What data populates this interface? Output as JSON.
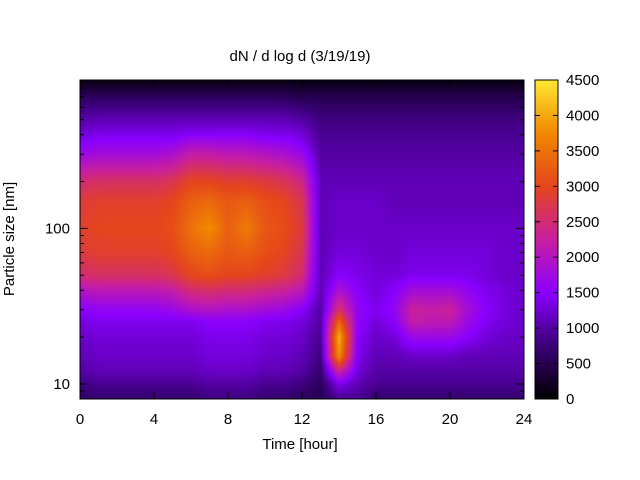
{
  "chart_data": {
    "type": "heatmap",
    "title": "dN / d log d (3/19/19)",
    "xlabel": "Time [hour]",
    "ylabel": "Particle size [nm]",
    "xlim": [
      0,
      24
    ],
    "ylim": [
      8,
      900
    ],
    "yscale": "log",
    "grid": false,
    "x_ticks": [
      0,
      4,
      8,
      12,
      16,
      20,
      24
    ],
    "x_tick_labels": [
      "0",
      "4",
      "8",
      "12",
      "16",
      "20",
      "24"
    ],
    "y_ticks": [
      10,
      100
    ],
    "y_tick_labels": [
      "10",
      "100"
    ],
    "colorbar": {
      "range": [
        0,
        4500
      ],
      "ticks": [
        0,
        500,
        1000,
        1500,
        2000,
        2500,
        3000,
        3500,
        4000,
        4500
      ],
      "tick_labels": [
        "0",
        "500",
        "1000",
        "1500",
        "2000",
        "2500",
        "3000",
        "3500",
        "4000",
        "4500"
      ],
      "colormap": [
        "#000000",
        "#3a0077",
        "#8a00ff",
        "#c81fa0",
        "#e5451c",
        "#f08800",
        "#ffe733"
      ]
    },
    "hours": [
      0,
      1,
      2,
      3,
      4,
      5,
      6,
      7,
      8,
      9,
      10,
      11,
      12,
      13,
      14,
      15,
      16,
      17,
      18,
      19,
      20,
      21,
      22,
      23,
      24
    ],
    "sizes_nm": [
      8,
      10,
      12,
      15,
      20,
      25,
      30,
      40,
      50,
      70,
      100,
      150,
      200,
      300,
      400,
      500,
      700,
      900
    ],
    "values": [
      [
        600,
        700,
        700,
        700,
        700,
        700,
        700,
        800,
        800,
        800,
        700,
        700,
        600,
        500,
        900,
        900,
        700,
        700,
        700,
        700,
        700,
        700,
        700,
        700,
        700
      ],
      [
        800,
        900,
        900,
        900,
        900,
        900,
        900,
        1000,
        1000,
        1000,
        900,
        900,
        800,
        600,
        1400,
        1100,
        900,
        900,
        900,
        900,
        900,
        900,
        900,
        900,
        900
      ],
      [
        1000,
        1100,
        1100,
        1100,
        1100,
        1100,
        1100,
        1200,
        1200,
        1200,
        1100,
        1100,
        1000,
        700,
        2300,
        1300,
        1000,
        1000,
        1000,
        1000,
        1000,
        1000,
        1000,
        1000,
        1000
      ],
      [
        1100,
        1200,
        1200,
        1200,
        1200,
        1200,
        1200,
        1300,
        1300,
        1300,
        1200,
        1200,
        1100,
        800,
        3800,
        1400,
        1100,
        1100,
        1200,
        1200,
        1200,
        1100,
        1100,
        1100,
        1100
      ],
      [
        1200,
        1300,
        1300,
        1300,
        1300,
        1300,
        1300,
        1400,
        1400,
        1400,
        1300,
        1300,
        1200,
        900,
        4100,
        1500,
        1200,
        1300,
        1700,
        1700,
        1700,
        1500,
        1300,
        1200,
        1200
      ],
      [
        1300,
        1400,
        1400,
        1400,
        1400,
        1400,
        1400,
        1500,
        1500,
        1500,
        1400,
        1400,
        1300,
        1000,
        3400,
        1600,
        1300,
        1500,
        2200,
        2100,
        2100,
        1700,
        1400,
        1300,
        1200
      ],
      [
        1500,
        1600,
        1600,
        1600,
        1600,
        1700,
        1900,
        2000,
        1900,
        1900,
        1800,
        1700,
        1500,
        1000,
        2600,
        1600,
        1400,
        1600,
        2300,
        2200,
        2300,
        1800,
        1500,
        1300,
        1200
      ],
      [
        2000,
        2100,
        2100,
        2100,
        2100,
        2200,
        2500,
        2600,
        2500,
        2500,
        2400,
        2300,
        2100,
        1100,
        1900,
        1500,
        1300,
        1500,
        1800,
        1800,
        1800,
        1600,
        1400,
        1300,
        1200
      ],
      [
        2500,
        2600,
        2600,
        2600,
        2600,
        2700,
        3000,
        3100,
        3000,
        3000,
        2900,
        2800,
        2500,
        1100,
        1500,
        1400,
        1300,
        1300,
        1400,
        1400,
        1400,
        1400,
        1300,
        1200,
        1200
      ],
      [
        2800,
        2900,
        2900,
        2900,
        2900,
        3000,
        3300,
        3400,
        3200,
        3300,
        3100,
        3000,
        2700,
        1100,
        1300,
        1300,
        1200,
        1200,
        1300,
        1300,
        1300,
        1300,
        1300,
        1200,
        1200
      ],
      [
        2900,
        3000,
        3000,
        3000,
        3000,
        3100,
        3500,
        3800,
        3300,
        3600,
        3200,
        3100,
        2800,
        1100,
        1200,
        1200,
        1200,
        1200,
        1200,
        1200,
        1200,
        1200,
        1200,
        1200,
        1200
      ],
      [
        2800,
        2900,
        2900,
        2900,
        2900,
        3000,
        3300,
        3400,
        3200,
        3300,
        3100,
        3000,
        2700,
        1100,
        1200,
        1200,
        1200,
        1100,
        1100,
        1100,
        1100,
        1100,
        1100,
        1100,
        1100
      ],
      [
        2500,
        2600,
        2600,
        2600,
        2600,
        2700,
        3000,
        3000,
        2900,
        2900,
        2800,
        2700,
        2400,
        1100,
        1100,
        1100,
        1100,
        1100,
        1100,
        1100,
        1100,
        1100,
        1100,
        1100,
        1100
      ],
      [
        1700,
        1800,
        1800,
        1800,
        1800,
        1900,
        2200,
        2200,
        2100,
        2100,
        2000,
        1900,
        1700,
        1000,
        1000,
        1000,
        1000,
        1000,
        1000,
        1000,
        1000,
        1000,
        1000,
        1000,
        1000
      ],
      [
        1300,
        1400,
        1400,
        1400,
        1400,
        1400,
        1500,
        1500,
        1500,
        1500,
        1400,
        1400,
        1300,
        900,
        900,
        900,
        900,
        900,
        900,
        900,
        900,
        900,
        900,
        900,
        900
      ],
      [
        1000,
        1100,
        1100,
        1100,
        1100,
        1100,
        1100,
        1100,
        1100,
        1100,
        1100,
        1100,
        1000,
        800,
        800,
        800,
        800,
        800,
        800,
        800,
        800,
        800,
        800,
        800,
        800
      ],
      [
        600,
        600,
        600,
        600,
        600,
        600,
        600,
        600,
        600,
        600,
        600,
        600,
        500,
        500,
        500,
        500,
        500,
        500,
        500,
        500,
        500,
        500,
        500,
        500,
        500
      ],
      [
        100,
        100,
        100,
        100,
        100,
        100,
        100,
        100,
        100,
        100,
        100,
        100,
        100,
        100,
        100,
        100,
        100,
        100,
        100,
        100,
        100,
        100,
        100,
        100,
        100
      ]
    ]
  }
}
